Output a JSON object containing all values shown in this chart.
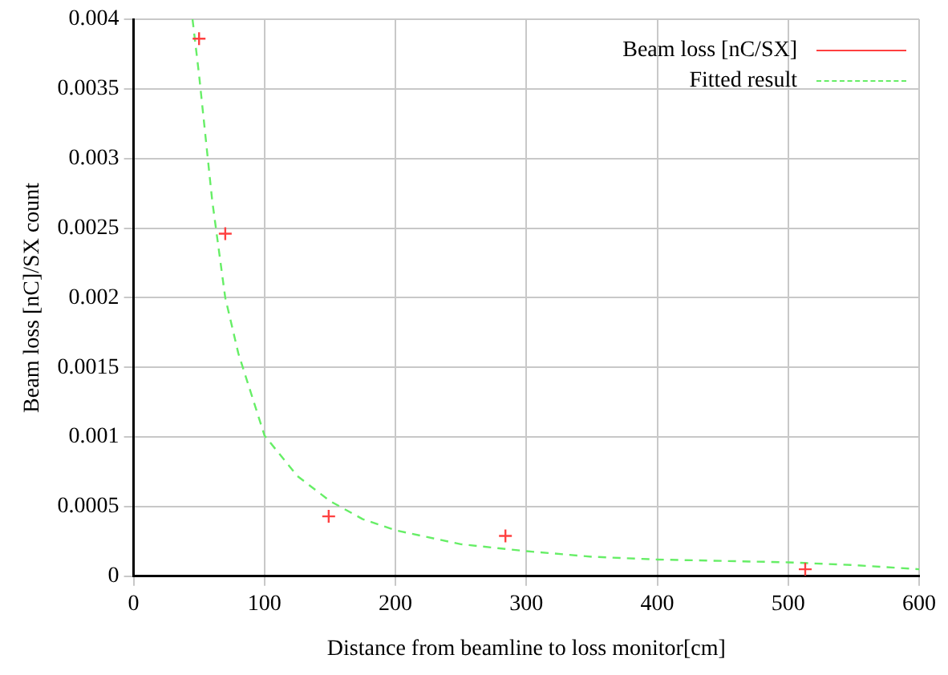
{
  "chart_data": {
    "type": "scatter",
    "xlabel": "Distance from beamline to loss monitor[cm]",
    "ylabel": "Beam loss [nC]/SX count",
    "xlim": [
      0,
      600
    ],
    "xticks": [
      0,
      100,
      200,
      300,
      400,
      500,
      600
    ],
    "ylim": [
      0,
      0.004
    ],
    "yticks": [
      0,
      0.0005,
      0.001,
      0.0015,
      0.002,
      0.0025,
      0.003,
      0.0035,
      0.004
    ],
    "grid": true,
    "legend": "top right",
    "series": [
      {
        "name": "Beam loss [nC/SX]",
        "color": "#ff4040",
        "marker": "cross",
        "x": [
          50,
          70,
          149,
          284,
          513
        ],
        "values": [
          0.00386,
          0.00246,
          0.00043,
          0.00029,
          5e-05
        ]
      },
      {
        "name": "Fitted result",
        "type": "line",
        "color": "#66ee66",
        "marker": "none",
        "line_style": "dashed",
        "x": [
          45,
          50,
          60,
          70,
          80,
          100,
          125,
          150,
          175,
          200,
          250,
          300,
          350,
          400,
          450,
          500,
          550,
          600
        ],
        "values": [
          0.004,
          0.0036,
          0.0027,
          0.002,
          0.0016,
          0.00101,
          0.00072,
          0.00054,
          0.00041,
          0.00033,
          0.00023,
          0.00018,
          0.00014,
          0.00012,
          0.00011,
          0.0001,
          8e-05,
          5e-05
        ]
      }
    ]
  }
}
